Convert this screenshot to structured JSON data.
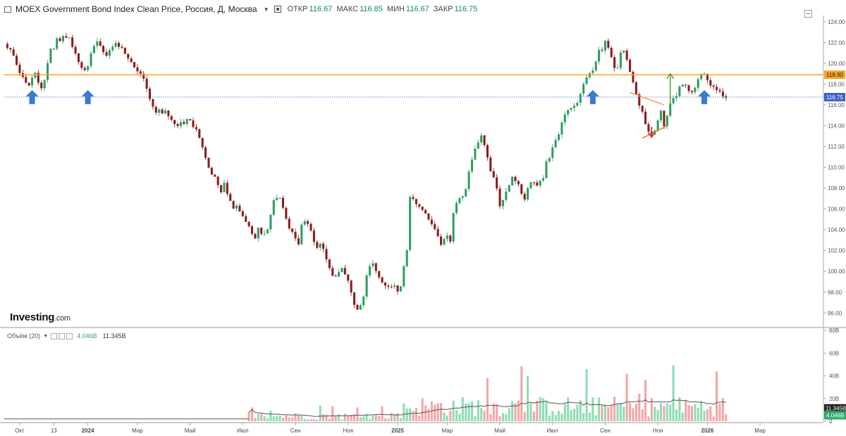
{
  "header": {
    "title": "MOEX Government Bond Index Clean Price, Россия, Д, Москва",
    "open_label": "ОТКР",
    "open_value": "116.67",
    "high_label": "МАКС",
    "high_value": "116.85",
    "low_label": "МИН",
    "low_value": "116.67",
    "close_label": "ЗАКР",
    "close_value": "116.75"
  },
  "logo": {
    "brand": "Investing",
    "suffix": ".com"
  },
  "volume_legend": {
    "label": "Объём (20)",
    "current": "4.046B",
    "average": "11.345B"
  },
  "colors": {
    "up": "#2e9e63",
    "down": "#8b1d1d",
    "resistance": "#f5a623",
    "last_price": "#3a60c9",
    "arrow": "#3a7bd5",
    "vol_up": "#8fdcb5",
    "vol_down": "#f2a7a7",
    "vol_ma": "#555555"
  },
  "chart_data": [
    {
      "type": "candlestick",
      "title": "MOEX Government Bond Index Clean Price",
      "x_ticks": [
        {
          "label": "Окт",
          "t": 5
        },
        {
          "label": "13",
          "t": 16
        },
        {
          "label": "2024",
          "t": 27
        },
        {
          "label": "Мар",
          "t": 43
        },
        {
          "label": "Май",
          "t": 60
        },
        {
          "label": "Июл",
          "t": 77
        },
        {
          "label": "Сен",
          "t": 94
        },
        {
          "label": "Ноя",
          "t": 111
        },
        {
          "label": "2025",
          "t": 127
        },
        {
          "label": "Мар",
          "t": 143
        },
        {
          "label": "Май",
          "t": 160
        },
        {
          "label": "Июл",
          "t": 177
        },
        {
          "label": "Сен",
          "t": 194
        },
        {
          "label": "Ноя",
          "t": 211
        },
        {
          "label": "2026",
          "t": 227
        },
        {
          "label": "Мар",
          "t": 244
        }
      ],
      "t_range": [
        0,
        264
      ],
      "y_ticks": [
        96,
        98,
        100,
        102,
        104,
        106,
        108,
        110,
        112,
        114,
        116,
        118,
        120,
        122,
        124
      ],
      "ylim": [
        94.8,
        124.6
      ],
      "anchors": [
        [
          0,
          121.8
        ],
        [
          2,
          121.3
        ],
        [
          4,
          119.8
        ],
        [
          5,
          119.0
        ],
        [
          6,
          118.8
        ],
        [
          7,
          118.0
        ],
        [
          8,
          117.8
        ],
        [
          9,
          118.5
        ],
        [
          10,
          119.0
        ],
        [
          11,
          118.2
        ],
        [
          12,
          117.5
        ],
        [
          13,
          118.5
        ],
        [
          14,
          120.0
        ],
        [
          15,
          121.5
        ],
        [
          16,
          121.5
        ],
        [
          17,
          122.3
        ],
        [
          18,
          122.0
        ],
        [
          19,
          122.5
        ],
        [
          20,
          122.6
        ],
        [
          21,
          122.5
        ],
        [
          22,
          121.5
        ],
        [
          23,
          121.0
        ],
        [
          24,
          120.2
        ],
        [
          25,
          119.6
        ],
        [
          26,
          119.2
        ],
        [
          27,
          119.6
        ],
        [
          28,
          121.0
        ],
        [
          29,
          121.7
        ],
        [
          30,
          122.0
        ],
        [
          31,
          121.8
        ],
        [
          32,
          121.2
        ],
        [
          33,
          120.8
        ],
        [
          34,
          121.3
        ],
        [
          35,
          121.6
        ],
        [
          36,
          121.8
        ],
        [
          37,
          121.6
        ],
        [
          38,
          121.4
        ],
        [
          39,
          121.0
        ],
        [
          40,
          120.5
        ],
        [
          41,
          120.0
        ],
        [
          42,
          119.5
        ],
        [
          43,
          119.3
        ],
        [
          44,
          119.0
        ],
        [
          45,
          118.4
        ],
        [
          46,
          117.5
        ],
        [
          47,
          116.7
        ],
        [
          48,
          115.8
        ],
        [
          49,
          115.4
        ],
        [
          50,
          115.5
        ],
        [
          51,
          115.2
        ],
        [
          52,
          115.4
        ],
        [
          53,
          115.0
        ],
        [
          54,
          114.6
        ],
        [
          55,
          114.2
        ],
        [
          56,
          114.0
        ],
        [
          57,
          114.2
        ],
        [
          58,
          114.2
        ],
        [
          59,
          114.8
        ],
        [
          60,
          114.6
        ],
        [
          61,
          114.0
        ],
        [
          62,
          113.6
        ],
        [
          63,
          113.0
        ],
        [
          64,
          112.0
        ],
        [
          65,
          111.0
        ],
        [
          66,
          110.0
        ],
        [
          67,
          109.4
        ],
        [
          68,
          109.0
        ],
        [
          69,
          108.3
        ],
        [
          70,
          107.6
        ],
        [
          71,
          108.4
        ],
        [
          72,
          107.4
        ],
        [
          73,
          106.7
        ],
        [
          74,
          106.2
        ],
        [
          75,
          106.3
        ],
        [
          76,
          105.8
        ],
        [
          77,
          105.3
        ],
        [
          78,
          104.7
        ],
        [
          79,
          104.4
        ],
        [
          80,
          103.6
        ],
        [
          81,
          103.0
        ],
        [
          82,
          104.3
        ],
        [
          83,
          103.6
        ],
        [
          84,
          103.5
        ],
        [
          85,
          104.0
        ],
        [
          86,
          105.6
        ],
        [
          87,
          106.8
        ],
        [
          88,
          107.0
        ],
        [
          89,
          107.1
        ],
        [
          90,
          106.0
        ],
        [
          91,
          105.0
        ],
        [
          92,
          104.2
        ],
        [
          93,
          103.7
        ],
        [
          94,
          103.0
        ],
        [
          95,
          102.6
        ],
        [
          96,
          104.6
        ],
        [
          97,
          104.8
        ],
        [
          98,
          104.5
        ],
        [
          99,
          103.8
        ],
        [
          100,
          102.8
        ],
        [
          101,
          102.2
        ],
        [
          102,
          102.8
        ],
        [
          103,
          102.0
        ],
        [
          104,
          101.3
        ],
        [
          105,
          100.4
        ],
        [
          106,
          99.6
        ],
        [
          107,
          99.4
        ],
        [
          108,
          100.0
        ],
        [
          109,
          100.2
        ],
        [
          110,
          99.8
        ],
        [
          111,
          99.0
        ],
        [
          112,
          98.0
        ],
        [
          113,
          96.8
        ],
        [
          114,
          96.5
        ],
        [
          115,
          96.8
        ],
        [
          116,
          97.5
        ],
        [
          117,
          99.5
        ],
        [
          118,
          100.4
        ],
        [
          119,
          100.6
        ],
        [
          120,
          100.0
        ],
        [
          121,
          99.3
        ],
        [
          122,
          99.0
        ],
        [
          123,
          98.8
        ],
        [
          124,
          98.6
        ],
        [
          125,
          98.5
        ],
        [
          126,
          98.6
        ],
        [
          127,
          98.0
        ],
        [
          128,
          98.5
        ],
        [
          129,
          100.5
        ],
        [
          130,
          102.0
        ],
        [
          131,
          107.0
        ],
        [
          132,
          106.9
        ],
        [
          133,
          106.6
        ],
        [
          134,
          106.2
        ],
        [
          135,
          106.0
        ],
        [
          136,
          105.5
        ],
        [
          137,
          105.0
        ],
        [
          138,
          104.6
        ],
        [
          139,
          104.0
        ],
        [
          140,
          103.4
        ],
        [
          141,
          102.6
        ],
        [
          142,
          103.2
        ],
        [
          143,
          103.5
        ],
        [
          144,
          103.0
        ],
        [
          145,
          105.6
        ],
        [
          146,
          106.4
        ],
        [
          147,
          107.0
        ],
        [
          148,
          107.2
        ],
        [
          149,
          107.8
        ],
        [
          150,
          109.5
        ],
        [
          151,
          110.8
        ],
        [
          152,
          111.8
        ],
        [
          153,
          112.4
        ],
        [
          154,
          113.2
        ],
        [
          155,
          112.0
        ],
        [
          156,
          111.0
        ],
        [
          157,
          109.8
        ],
        [
          158,
          109.0
        ],
        [
          159,
          108.0
        ],
        [
          160,
          106.4
        ],
        [
          161,
          107.0
        ],
        [
          162,
          107.8
        ],
        [
          163,
          108.4
        ],
        [
          164,
          109.0
        ],
        [
          165,
          108.6
        ],
        [
          166,
          108.3
        ],
        [
          167,
          107.5
        ],
        [
          168,
          107.0
        ],
        [
          169,
          108.0
        ],
        [
          170,
          108.4
        ],
        [
          171,
          108.6
        ],
        [
          172,
          108.4
        ],
        [
          173,
          108.6
        ],
        [
          174,
          109.0
        ],
        [
          175,
          110.4
        ],
        [
          176,
          111.0
        ],
        [
          177,
          112.0
        ],
        [
          178,
          112.6
        ],
        [
          179,
          113.0
        ],
        [
          180,
          114.4
        ],
        [
          181,
          115.0
        ],
        [
          182,
          115.6
        ],
        [
          183,
          115.6
        ],
        [
          184,
          116.0
        ],
        [
          185,
          116.2
        ],
        [
          186,
          117.0
        ],
        [
          187,
          118.0
        ],
        [
          188,
          118.6
        ],
        [
          189,
          119.0
        ],
        [
          190,
          119.4
        ],
        [
          191,
          120.3
        ],
        [
          192,
          121.2
        ],
        [
          193,
          121.4
        ],
        [
          194,
          122.3
        ],
        [
          195,
          121.5
        ],
        [
          196,
          120.6
        ],
        [
          197,
          119.6
        ],
        [
          198,
          119.5
        ],
        [
          199,
          121.0
        ],
        [
          200,
          121.2
        ],
        [
          201,
          120.4
        ],
        [
          202,
          119.2
        ],
        [
          203,
          118.2
        ],
        [
          204,
          117.0
        ],
        [
          205,
          116.0
        ],
        [
          206,
          115.2
        ],
        [
          207,
          114.0
        ],
        [
          208,
          113.4
        ],
        [
          209,
          113.2
        ],
        [
          210,
          113.4
        ],
        [
          211,
          114.6
        ],
        [
          212,
          115.6
        ],
        [
          213,
          114.0
        ],
        [
          214,
          115.0
        ],
        [
          215,
          116.0
        ],
        [
          216,
          116.5
        ],
        [
          217,
          117.0
        ],
        [
          218,
          117.8
        ],
        [
          219,
          118.0
        ],
        [
          220,
          118.0
        ],
        [
          221,
          117.2
        ],
        [
          222,
          117.3
        ],
        [
          223,
          117.5
        ],
        [
          224,
          118.4
        ],
        [
          225,
          118.8
        ],
        [
          226,
          118.9
        ],
        [
          227,
          118.4
        ],
        [
          228,
          117.8
        ],
        [
          229,
          117.6
        ],
        [
          230,
          117.5
        ],
        [
          231,
          117.2
        ],
        [
          232,
          116.8
        ],
        [
          233,
          116.7
        ]
      ],
      "volume_y_ticks": [
        {
          "label": "0",
          "v": 0
        },
        {
          "label": "20B",
          "v": 20
        },
        {
          "label": "40B",
          "v": 40
        },
        {
          "label": "60B",
          "v": 60
        },
        {
          "label": "80B",
          "v": 80
        }
      ],
      "volume_ylim": [
        0,
        82
      ],
      "volume_start_t": 79,
      "annotations": {
        "resistance": {
          "y": 118.9,
          "label": "118.90"
        },
        "last_price": {
          "y": 116.75,
          "label": "116.75"
        },
        "arrows_at_t": [
          9,
          27,
          190,
          226
        ],
        "triangle": {
          "top_from": [
            202,
            117.2
          ],
          "top_to": [
            213,
            116.0
          ],
          "bottom_from": [
            206,
            112.8
          ],
          "bottom_to": [
            214,
            114.0
          ]
        },
        "breakout_up": {
          "t": 215,
          "y_from": 116.0,
          "y_to": 119.0
        },
        "breakout_down": {
          "t": 209,
          "y_from": 113.9,
          "y_to": 112.9
        }
      }
    }
  ]
}
